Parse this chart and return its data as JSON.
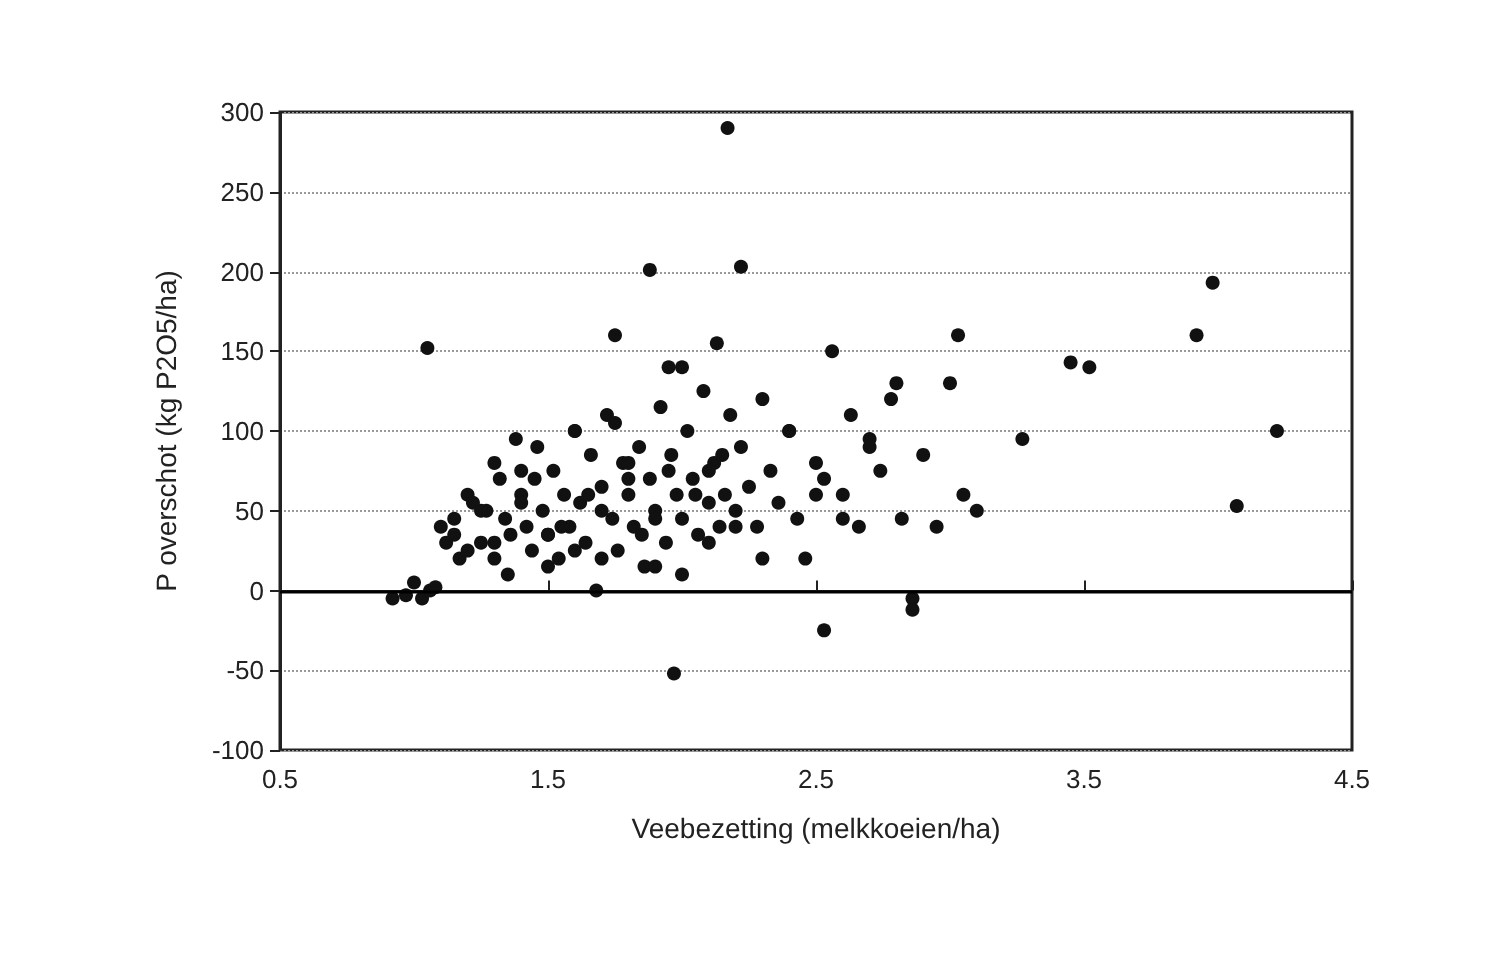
{
  "chart_data": {
    "type": "scatter",
    "xlabel": "Veebezetting (melkkoeien/ha)",
    "ylabel": "P overschot (kg P2O5/ha)",
    "xlim": [
      0.5,
      4.5
    ],
    "xticks": [
      0.5,
      1.5,
      2.5,
      3.5,
      4.5
    ],
    "ylim": [
      -100,
      300
    ],
    "yticks": [
      -100,
      -50,
      0,
      50,
      100,
      150,
      200,
      250,
      300
    ],
    "grid": "y",
    "marker": "circle",
    "ref_lines": [
      {
        "axis": "y",
        "value": 0,
        "color": "#000000",
        "line_style": "solid"
      }
    ],
    "series": [
      {
        "color": "#111111",
        "x": [
          0.92,
          0.97,
          1.0,
          1.03,
          1.06,
          1.08,
          1.1,
          1.12,
          1.15,
          1.17,
          1.2,
          1.22,
          1.25,
          1.27,
          1.3,
          1.32,
          1.34,
          1.36,
          1.38,
          1.4,
          1.42,
          1.44,
          1.46,
          1.48,
          1.5,
          1.52,
          1.54,
          1.56,
          1.58,
          1.6,
          1.62,
          1.64,
          1.66,
          1.68,
          1.7,
          1.72,
          1.74,
          1.76,
          1.78,
          1.8,
          1.82,
          1.84,
          1.86,
          1.88,
          1.9,
          1.92,
          1.94,
          1.96,
          1.98,
          2.0,
          2.02,
          2.04,
          2.06,
          2.08,
          2.1,
          2.12,
          2.14,
          2.16,
          2.18,
          2.2,
          2.22,
          2.25,
          2.28,
          2.3,
          2.33,
          2.36,
          2.4,
          2.43,
          2.46,
          2.5,
          2.53,
          2.56,
          2.6,
          2.63,
          2.66,
          2.7,
          2.74,
          2.78,
          2.82,
          2.86,
          2.9,
          2.95,
          3.0,
          3.05,
          3.1,
          1.15,
          1.2,
          1.25,
          1.3,
          1.35,
          1.4,
          1.45,
          1.5,
          1.55,
          1.6,
          1.65,
          1.7,
          1.75,
          1.8,
          1.85,
          1.9,
          1.95,
          2.0,
          2.05,
          2.1,
          2.15,
          2.2,
          2.3,
          2.4,
          2.5,
          2.6,
          2.7,
          1.3,
          1.4,
          1.5,
          1.6,
          1.7,
          1.8,
          1.9,
          2.0,
          2.1,
          1.05,
          2.17,
          1.88,
          2.22,
          1.75,
          1.95,
          2.13,
          3.03,
          3.27,
          3.45,
          3.52,
          3.92,
          3.98,
          4.07,
          4.22,
          2.53,
          2.86,
          1.97,
          2.8
        ],
        "values": [
          -5,
          -3,
          5,
          -5,
          0,
          2,
          40,
          30,
          45,
          20,
          60,
          55,
          30,
          50,
          20,
          70,
          45,
          35,
          95,
          60,
          40,
          25,
          90,
          50,
          35,
          75,
          20,
          60,
          40,
          100,
          55,
          30,
          85,
          0,
          65,
          110,
          45,
          25,
          80,
          60,
          40,
          90,
          15,
          70,
          50,
          115,
          30,
          85,
          60,
          45,
          100,
          70,
          35,
          125,
          55,
          80,
          40,
          60,
          110,
          50,
          90,
          65,
          40,
          120,
          75,
          55,
          100,
          45,
          20,
          80,
          70,
          150,
          60,
          110,
          40,
          90,
          75,
          120,
          45,
          -5,
          85,
          40,
          130,
          60,
          50,
          35,
          25,
          50,
          80,
          10,
          55,
          70,
          15,
          40,
          25,
          60,
          20,
          105,
          70,
          35,
          45,
          75,
          10,
          60,
          30,
          85,
          40,
          20,
          100,
          60,
          45,
          95,
          30,
          75,
          35,
          100,
          50,
          80,
          15,
          140,
          75,
          152,
          290,
          201,
          203,
          160,
          140,
          155,
          160,
          95,
          143,
          140,
          160,
          193,
          53,
          100,
          -25,
          -12,
          -52,
          130
        ]
      }
    ]
  }
}
